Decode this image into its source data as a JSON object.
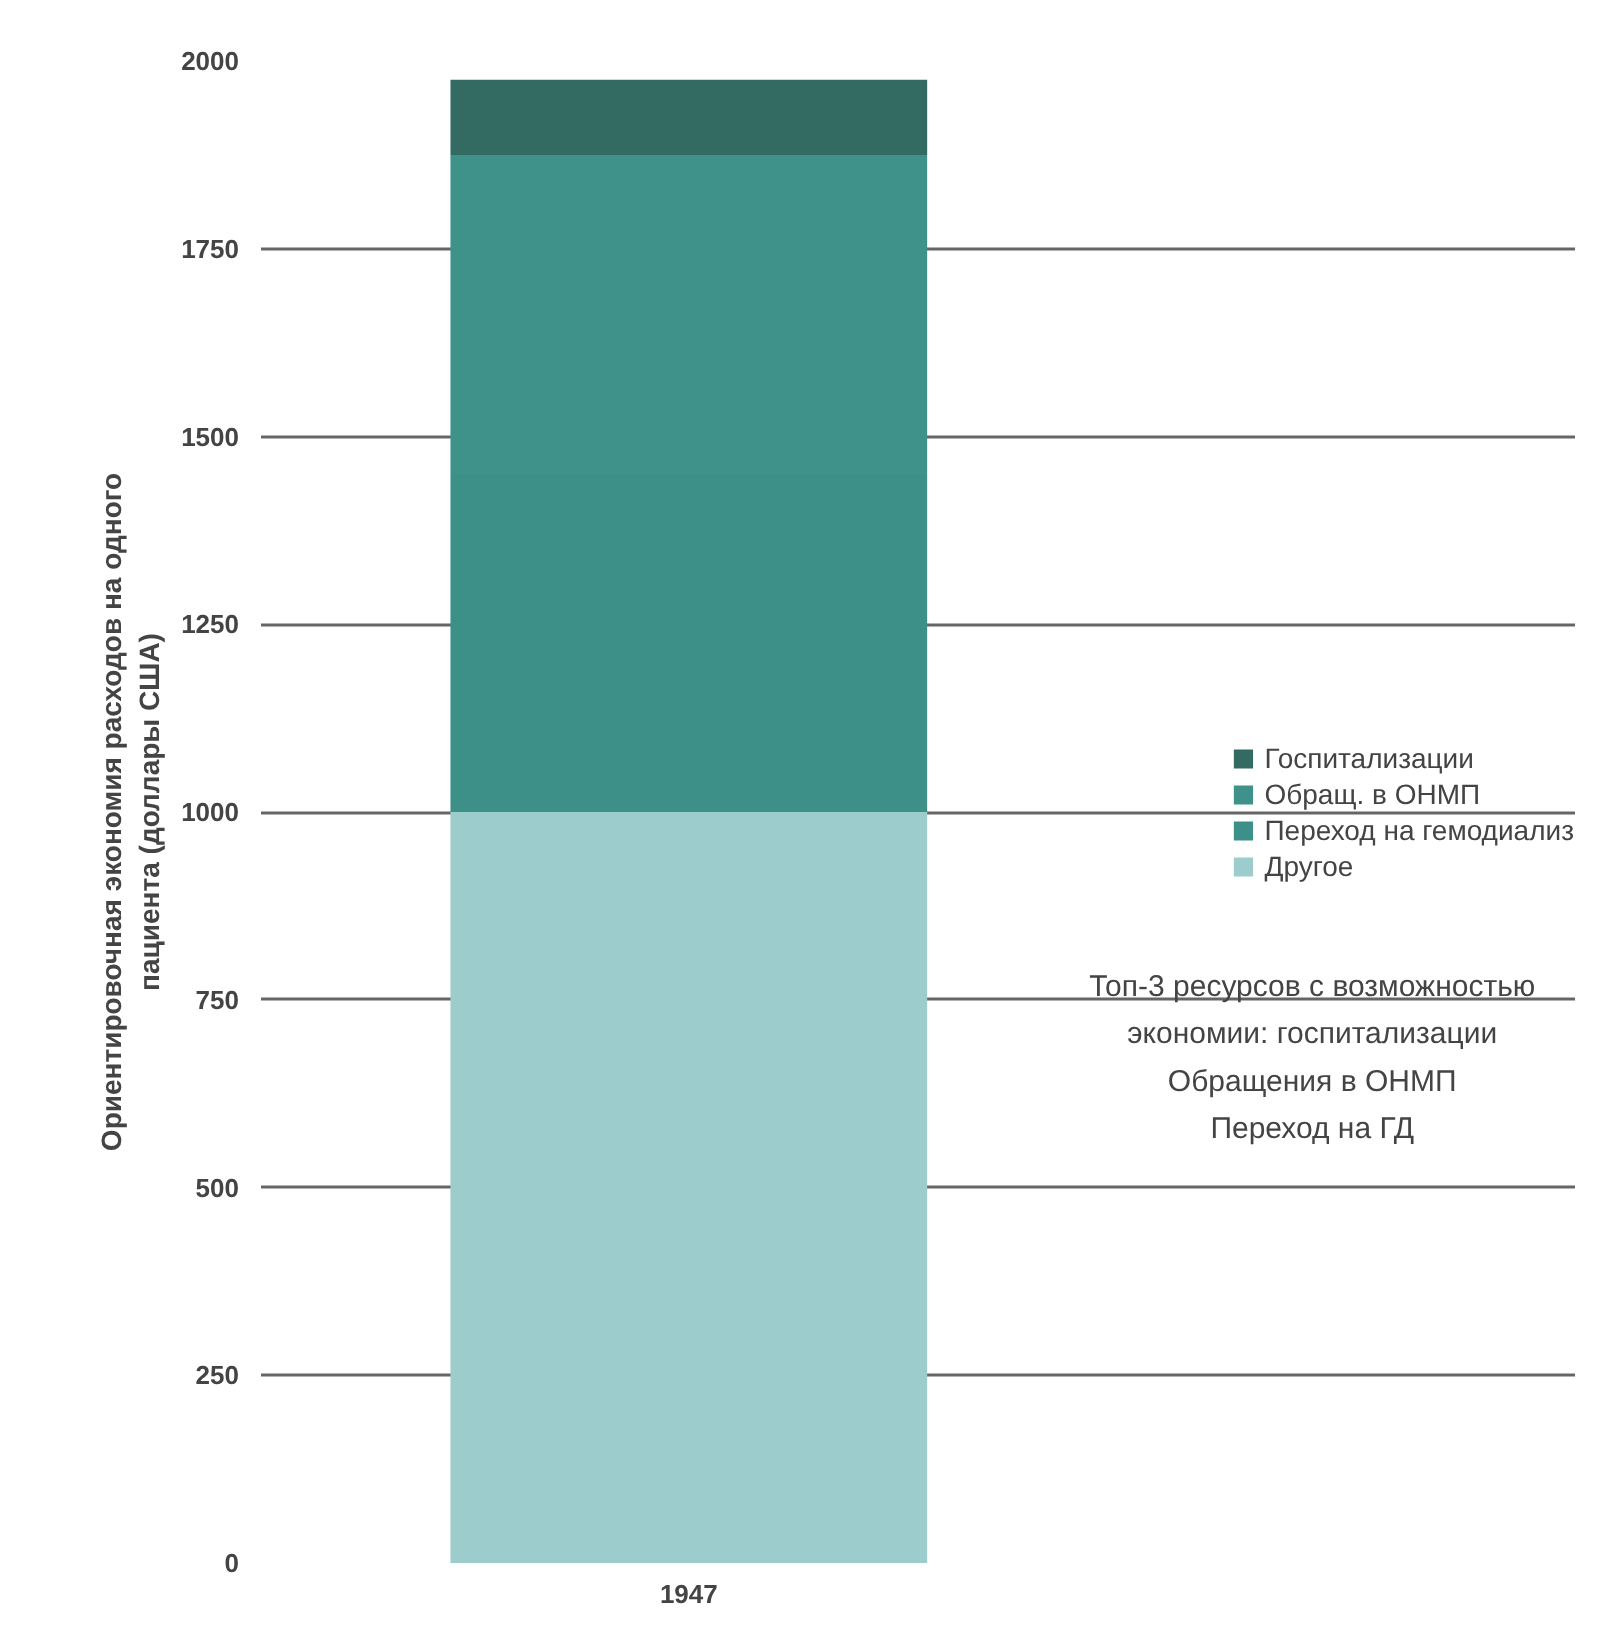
{
  "chart_data": {
    "type": "bar",
    "stacked": true,
    "categories": [
      "1947"
    ],
    "ylabel": "Ориентировочная экономия расходов на одного\nпациента (доллары США)",
    "series": [
      {
        "name": "Другое",
        "color": "#9ccccb",
        "values": [
          1000
        ]
      },
      {
        "name": "Переход на гемодиализ",
        "color": "#3c9088",
        "values": [
          450
        ]
      },
      {
        "name": "Обращ. в ОНМП",
        "color": "#3e928a",
        "values": [
          425
        ]
      },
      {
        "name": "Госпитализации",
        "color": "#336b62",
        "values": [
          100
        ]
      }
    ],
    "ylim": [
      0,
      2000
    ],
    "yticks": [
      0,
      250,
      500,
      750,
      1000,
      1250,
      1500,
      1750,
      2000
    ],
    "grid": "y",
    "legend": "right",
    "annotations": [
      "Топ-3 ресурсов с возможностью\nэкономии: госпитализации\nОбращения в ОНМП\nПереход на ГД"
    ]
  }
}
